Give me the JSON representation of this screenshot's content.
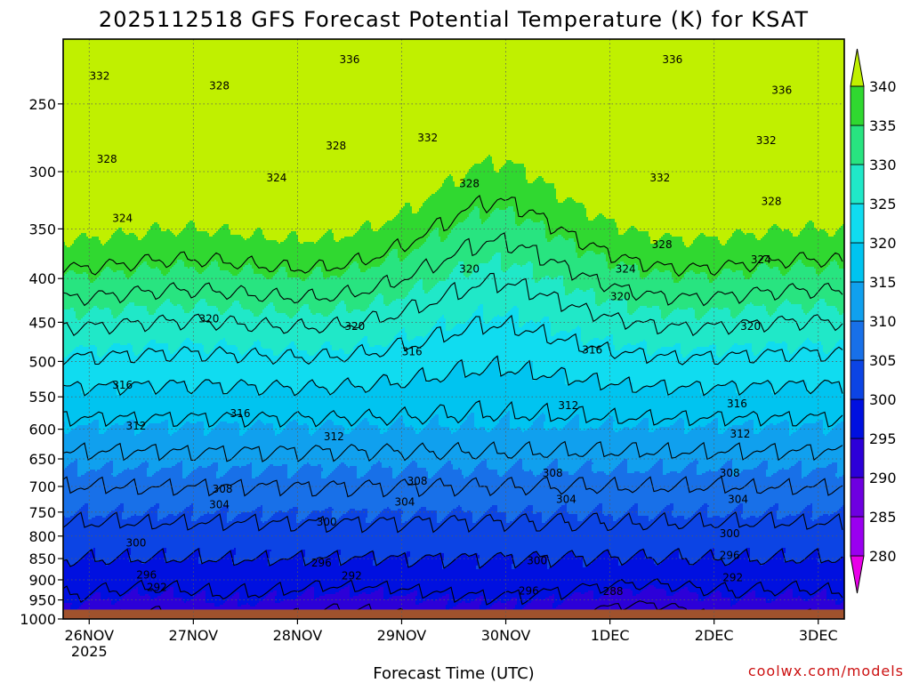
{
  "chart_data": {
    "type": "heatmap",
    "title": "2025112518 GFS Forecast Potential Temperature (K) for KSAT",
    "xlabel": "Forecast Time (UTC)",
    "ylabel": "",
    "credit": "coolwx.com/models",
    "x_ticks": [
      {
        "day": 0,
        "label": "26NOV",
        "sub": "2025"
      },
      {
        "day": 1,
        "label": "27NOV",
        "sub": ""
      },
      {
        "day": 2,
        "label": "28NOV",
        "sub": ""
      },
      {
        "day": 3,
        "label": "29NOV",
        "sub": ""
      },
      {
        "day": 4,
        "label": "30NOV",
        "sub": ""
      },
      {
        "day": 5,
        "label": "1DEC",
        "sub": ""
      },
      {
        "day": 6,
        "label": "2DEC",
        "sub": ""
      },
      {
        "day": 7,
        "label": "3DEC",
        "sub": ""
      }
    ],
    "x_range_days": [
      -0.25,
      7.25
    ],
    "y_axis": {
      "type": "log-pressure",
      "units": "hPa",
      "range": [
        1000,
        210
      ],
      "inverted": true,
      "ticks": [
        1000,
        950,
        900,
        850,
        800,
        750,
        700,
        650,
        600,
        550,
        500,
        450,
        400,
        350,
        300,
        250
      ]
    },
    "surface_pressure": 975,
    "colorbar": {
      "levels": [
        280,
        285,
        290,
        295,
        300,
        305,
        310,
        315,
        320,
        325,
        330,
        335,
        340
      ],
      "labels": [
        "280",
        "285",
        "290",
        "295",
        "300",
        "305",
        "310",
        "315",
        "320",
        "325",
        "330",
        "335",
        "340"
      ],
      "colors": [
        "#e800e8",
        "#9a00f0",
        "#6e00e0",
        "#2c00d8",
        "#0010e0",
        "#0c44e4",
        "#1870e8",
        "#10a0ee",
        "#00c4f0",
        "#10dcf0",
        "#20e8c8",
        "#28e480",
        "#30d830",
        "#c0f000"
      ]
    },
    "contour_levels": [
      288,
      292,
      296,
      300,
      304,
      308,
      312,
      316,
      320,
      324,
      328,
      332,
      336
    ],
    "contour_labels": [
      {
        "text": "332",
        "day": 0.1,
        "p": 232
      },
      {
        "text": "336",
        "day": 2.5,
        "p": 222
      },
      {
        "text": "336",
        "day": 5.6,
        "p": 222
      },
      {
        "text": "336",
        "day": 6.65,
        "p": 241
      },
      {
        "text": "328",
        "day": 1.25,
        "p": 238
      },
      {
        "text": "328",
        "day": 0.17,
        "p": 290
      },
      {
        "text": "328",
        "day": 2.37,
        "p": 280
      },
      {
        "text": "332",
        "day": 3.25,
        "p": 274
      },
      {
        "text": "328",
        "day": 3.65,
        "p": 310
      },
      {
        "text": "332",
        "day": 5.48,
        "p": 305
      },
      {
        "text": "332",
        "day": 6.5,
        "p": 276
      },
      {
        "text": "328",
        "day": 6.55,
        "p": 325
      },
      {
        "text": "324",
        "day": 1.8,
        "p": 305
      },
      {
        "text": "324",
        "day": 0.32,
        "p": 340
      },
      {
        "text": "328",
        "day": 5.5,
        "p": 365
      },
      {
        "text": "324",
        "day": 5.15,
        "p": 390
      },
      {
        "text": "324",
        "day": 6.45,
        "p": 380
      },
      {
        "text": "320",
        "day": 3.65,
        "p": 390
      },
      {
        "text": "320",
        "day": 5.1,
        "p": 420
      },
      {
        "text": "320",
        "day": 1.15,
        "p": 446
      },
      {
        "text": "320",
        "day": 2.55,
        "p": 455
      },
      {
        "text": "320",
        "day": 6.35,
        "p": 455
      },
      {
        "text": "316",
        "day": 3.1,
        "p": 487
      },
      {
        "text": "316",
        "day": 4.83,
        "p": 485
      },
      {
        "text": "316",
        "day": 0.32,
        "p": 533
      },
      {
        "text": "316",
        "day": 1.45,
        "p": 575
      },
      {
        "text": "316",
        "day": 6.22,
        "p": 560
      },
      {
        "text": "312",
        "day": 0.45,
        "p": 595
      },
      {
        "text": "312",
        "day": 2.35,
        "p": 612
      },
      {
        "text": "312",
        "day": 4.6,
        "p": 563
      },
      {
        "text": "312",
        "day": 6.25,
        "p": 608
      },
      {
        "text": "308",
        "day": 1.28,
        "p": 705
      },
      {
        "text": "308",
        "day": 3.15,
        "p": 690
      },
      {
        "text": "308",
        "day": 4.45,
        "p": 675
      },
      {
        "text": "308",
        "day": 6.15,
        "p": 675
      },
      {
        "text": "304",
        "day": 1.25,
        "p": 735
      },
      {
        "text": "304",
        "day": 3.03,
        "p": 730
      },
      {
        "text": "304",
        "day": 4.58,
        "p": 725
      },
      {
        "text": "304",
        "day": 6.23,
        "p": 725
      },
      {
        "text": "300",
        "day": 2.28,
        "p": 770
      },
      {
        "text": "300",
        "day": 0.45,
        "p": 815
      },
      {
        "text": "300",
        "day": 4.3,
        "p": 855
      },
      {
        "text": "300",
        "day": 6.15,
        "p": 795
      },
      {
        "text": "296",
        "day": 0.55,
        "p": 888
      },
      {
        "text": "296",
        "day": 2.23,
        "p": 860
      },
      {
        "text": "296",
        "day": 4.22,
        "p": 927
      },
      {
        "text": "296",
        "day": 6.15,
        "p": 843
      },
      {
        "text": "292",
        "day": 0.65,
        "p": 918
      },
      {
        "text": "292",
        "day": 2.52,
        "p": 890
      },
      {
        "text": "292",
        "day": 6.18,
        "p": 895
      },
      {
        "text": "288",
        "day": 5.03,
        "p": 928
      }
    ]
  }
}
